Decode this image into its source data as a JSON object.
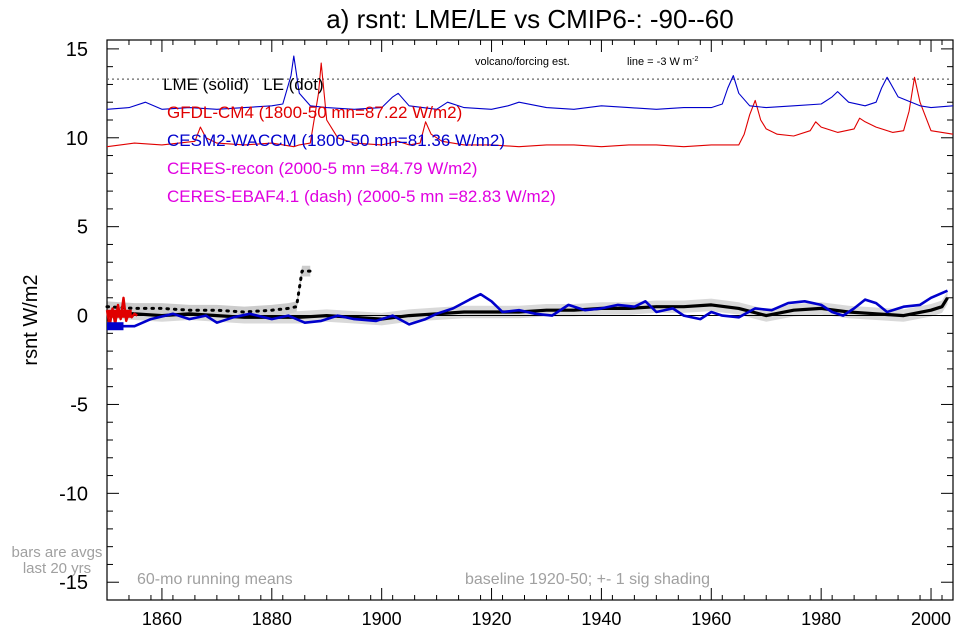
{
  "chart_data": {
    "type": "line",
    "title": "a) rsnt: LME/LE vs CMIP6-: -90--60",
    "ylabel": "rsnt W/m2",
    "xlabel": "",
    "xlim": [
      1850,
      2004
    ],
    "ylim": [
      -16,
      15.5
    ],
    "xticks": [
      1860,
      1880,
      1900,
      1920,
      1940,
      1960,
      1980,
      2000
    ],
    "xtick_labels": [
      "1860",
      "1880",
      "1900",
      "1920",
      "1940",
      "1960",
      "1980",
      "2000"
    ],
    "yticks": [
      15,
      10,
      5,
      0,
      -5,
      -10,
      -15
    ],
    "ytick_labels": [
      "15",
      "10",
      "5",
      "0",
      "-5",
      "-10",
      "-15"
    ],
    "reference_line_y": 13.3,
    "annotations": {
      "ref_left": "volcano/forcing est.",
      "ref_right": "line = -3 W m",
      "ref_right_sup": "-2",
      "left_bottom_1": "bars are avgs",
      "left_bottom_2": "last 20 yrs",
      "bottom_left": "60-mo running means",
      "bottom_right": "baseline 1920-50; +- 1 sig shading"
    },
    "legend": {
      "placement": "top-left",
      "entries": [
        {
          "text": "LME (solid)   LE (dot)",
          "color": "#000000"
        },
        {
          "text": "GFDL-CM4 (1800-50 mn=87.22 W/m2)",
          "color": "#e00000"
        },
        {
          "text": "CESM2-WACCM (1800-50 mn=81.36 W/m2)",
          "color": "#0000cc"
        },
        {
          "text": "CERES-recon (2000-5 mn =84.79 W/m2)",
          "color": "#e000e0"
        },
        {
          "text": "CERES-EBAF4.1 (dash) (2000-5 mn =82.83 W/m2)",
          "color": "#e000e0"
        }
      ]
    },
    "series": [
      {
        "name": "GFDL-CM4",
        "color": "#e00000",
        "x": [
          1850,
          1855,
          1860,
          1866,
          1867,
          1868,
          1870,
          1875,
          1880,
          1884,
          1885,
          1887,
          1888.5,
          1889,
          1890,
          1892,
          1895,
          1900,
          1903,
          1905,
          1907,
          1908,
          1909,
          1911,
          1915,
          1920,
          1925,
          1930,
          1935,
          1940,
          1945,
          1950,
          1955,
          1960,
          1965,
          1966,
          1967,
          1968,
          1969,
          1970,
          1972,
          1975,
          1978,
          1979,
          1980,
          1983,
          1986,
          1987,
          1988,
          1990,
          1993,
          1995,
          1996,
          1997,
          1998,
          2000,
          2002,
          2004
        ],
        "y": [
          9.5,
          9.7,
          9.6,
          9.8,
          10.6,
          10.0,
          9.7,
          9.6,
          9.7,
          9.5,
          9.6,
          9.7,
          12.5,
          14.2,
          11.0,
          10.0,
          9.7,
          9.6,
          9.8,
          9.6,
          9.7,
          10.9,
          10.2,
          9.8,
          9.6,
          9.6,
          9.5,
          9.6,
          9.6,
          9.5,
          9.6,
          9.6,
          9.5,
          9.6,
          9.6,
          10.2,
          11.3,
          12.1,
          11.0,
          10.5,
          10.2,
          10.1,
          10.4,
          10.9,
          10.6,
          10.3,
          10.5,
          11.1,
          10.9,
          10.6,
          10.3,
          10.4,
          11.5,
          13.4,
          12.0,
          10.4,
          10.3,
          10.2
        ]
      },
      {
        "name": "CESM2-WACCM",
        "color": "#0000cc",
        "x": [
          1850,
          1854,
          1857,
          1860,
          1865,
          1870,
          1875,
          1880,
          1882,
          1883.5,
          1884,
          1885,
          1887,
          1890,
          1895,
          1900,
          1902,
          1903,
          1905,
          1910,
          1912,
          1915,
          1920,
          1923,
          1925,
          1930,
          1935,
          1940,
          1945,
          1950,
          1955,
          1960,
          1962,
          1963,
          1964,
          1965,
          1967,
          1970,
          1975,
          1980,
          1982,
          1983,
          1985,
          1988,
          1990,
          1991,
          1992,
          1994,
          1998,
          2000,
          2004
        ],
        "y": [
          11.6,
          11.7,
          12.0,
          11.6,
          11.7,
          11.6,
          11.7,
          11.8,
          11.9,
          13.5,
          14.6,
          12.5,
          11.8,
          11.7,
          11.6,
          11.7,
          12.3,
          12.5,
          11.8,
          11.6,
          12.0,
          11.7,
          11.6,
          11.8,
          12.0,
          11.7,
          11.6,
          11.8,
          11.7,
          11.6,
          11.7,
          11.7,
          11.9,
          12.8,
          13.5,
          12.5,
          11.8,
          11.7,
          11.8,
          11.9,
          12.3,
          12.6,
          12.0,
          11.8,
          12.0,
          12.8,
          13.4,
          12.3,
          11.8,
          11.7,
          11.8
        ]
      },
      {
        "name": "LME (solid)",
        "color": "#000000",
        "x": [
          1850,
          1855,
          1860,
          1865,
          1870,
          1875,
          1880,
          1885,
          1890,
          1895,
          1900,
          1905,
          1910,
          1915,
          1920,
          1925,
          1930,
          1935,
          1940,
          1945,
          1950,
          1955,
          1960,
          1965,
          1970,
          1975,
          1980,
          1985,
          1990,
          1995,
          2000,
          2002,
          2003
        ],
        "y": [
          0.2,
          0.1,
          0.0,
          0.1,
          0.0,
          -0.1,
          -0.1,
          -0.1,
          0.0,
          -0.1,
          -0.2,
          0.0,
          0.1,
          0.2,
          0.2,
          0.2,
          0.3,
          0.3,
          0.4,
          0.4,
          0.5,
          0.5,
          0.6,
          0.4,
          0.0,
          0.3,
          0.4,
          0.2,
          0.1,
          0.0,
          0.3,
          0.5,
          1.0
        ]
      },
      {
        "name": "LE (dot)",
        "color": "#000000",
        "dashed": true,
        "x": [
          1850,
          1855,
          1860,
          1865,
          1870,
          1875,
          1880,
          1883,
          1884.5,
          1885.5,
          1887
        ],
        "y": [
          0.5,
          0.4,
          0.4,
          0.3,
          0.3,
          0.2,
          0.3,
          0.4,
          0.5,
          2.5,
          2.5
        ]
      },
      {
        "name": "CESM2-WACCM anomaly",
        "color": "#0000cc",
        "x": [
          1850,
          1855,
          1858,
          1862,
          1865,
          1868,
          1870,
          1873,
          1876,
          1880,
          1883,
          1886,
          1889,
          1892,
          1895,
          1899,
          1902,
          1905,
          1908,
          1910,
          1913,
          1916,
          1918,
          1920,
          1922,
          1925,
          1928,
          1931,
          1934,
          1937,
          1940,
          1943,
          1946,
          1948,
          1950,
          1953,
          1955,
          1958,
          1960,
          1962,
          1965,
          1968,
          1971,
          1974,
          1977,
          1980,
          1982,
          1984,
          1986,
          1988,
          1990,
          1992,
          1995,
          1998,
          2000,
          2003
        ],
        "y": [
          -0.6,
          -0.6,
          -0.2,
          0.1,
          -0.2,
          0.0,
          -0.4,
          -0.1,
          0.1,
          -0.2,
          0.0,
          -0.4,
          -0.3,
          0.0,
          -0.2,
          -0.3,
          0.0,
          -0.5,
          -0.2,
          0.1,
          0.4,
          0.9,
          1.2,
          0.8,
          0.2,
          0.3,
          0.1,
          0.0,
          0.6,
          0.3,
          0.4,
          0.6,
          0.5,
          0.8,
          0.2,
          0.4,
          0.0,
          -0.2,
          0.2,
          0.0,
          -0.1,
          0.4,
          0.3,
          0.7,
          0.8,
          0.6,
          0.2,
          0.0,
          0.4,
          0.9,
          0.7,
          0.2,
          0.5,
          0.6,
          1.0,
          1.4
        ]
      },
      {
        "name": "GFDL-CM4 anomaly",
        "color": "#e00000",
        "x": [
          1850,
          1850.5,
          1851,
          1851.5,
          1852,
          1852.5,
          1853,
          1853.5,
          1854,
          1854.5,
          1855,
          1855.5
        ],
        "y": [
          0.3,
          -0.6,
          0.4,
          -0.5,
          0.6,
          -0.2,
          1.0,
          -0.3,
          0.2,
          -0.1,
          0.1,
          0.0
        ]
      }
    ]
  }
}
